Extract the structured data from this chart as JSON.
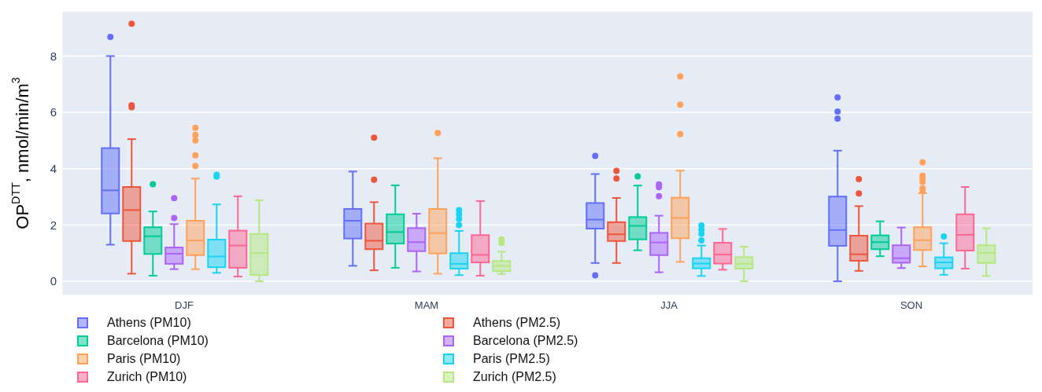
{
  "chart_data": {
    "type": "box",
    "ylabel": "OP$^{DTT}$, nmol/min/m$^{3}$",
    "categories": [
      "DJF",
      "MAM",
      "JJA",
      "SON"
    ],
    "ylim": [
      -0.5,
      9.6
    ],
    "yticks": [
      0,
      2,
      4,
      6,
      8
    ],
    "grid": "y",
    "legend": "bottom",
    "series": [
      {
        "name": "Athens (PM10)",
        "color": "#636efa",
        "boxes": [
          {
            "low": 1.3,
            "q1": 2.41,
            "median": 3.23,
            "q3": 4.73,
            "high": 8.0,
            "outliers": [
              8.68
            ]
          },
          {
            "low": 0.55,
            "q1": 1.52,
            "median": 2.15,
            "q3": 2.57,
            "high": 3.9
          },
          {
            "low": 0.65,
            "q1": 1.87,
            "median": 2.19,
            "q3": 2.78,
            "high": 3.81,
            "outliers": [
              4.45,
              0.21
            ]
          },
          {
            "low": 0.0,
            "q1": 1.26,
            "median": 1.82,
            "q3": 3.01,
            "high": 4.64,
            "outliers": [
              6.53,
              6.03,
              5.78
            ]
          }
        ]
      },
      {
        "name": "Athens (PM2.5)",
        "color": "#ef553b",
        "boxes": [
          {
            "low": 0.27,
            "q1": 1.43,
            "median": 2.53,
            "q3": 3.35,
            "high": 5.05,
            "outliers": [
              9.15,
              6.25,
              6.18
            ]
          },
          {
            "low": 0.39,
            "q1": 1.14,
            "median": 1.44,
            "q3": 2.05,
            "high": 2.81,
            "outliers": [
              5.1,
              3.61
            ]
          },
          {
            "low": 0.65,
            "q1": 1.43,
            "median": 1.67,
            "q3": 2.1,
            "high": 2.96,
            "outliers": [
              3.92,
              3.65
            ]
          },
          {
            "low": 0.37,
            "q1": 0.73,
            "median": 0.96,
            "q3": 1.62,
            "high": 2.67,
            "outliers": [
              3.63,
              3.12
            ]
          }
        ]
      },
      {
        "name": "Barcelona (PM10)",
        "color": "#00cc96",
        "boxes": [
          {
            "low": 0.2,
            "q1": 0.97,
            "median": 1.6,
            "q3": 1.92,
            "high": 2.48,
            "outliers": [
              3.45
            ]
          },
          {
            "low": 0.48,
            "q1": 1.34,
            "median": 1.75,
            "q3": 2.38,
            "high": 3.41
          },
          {
            "low": 1.1,
            "q1": 1.49,
            "median": 1.97,
            "q3": 2.28,
            "high": 3.4,
            "outliers": [
              3.73
            ]
          },
          {
            "low": 0.89,
            "q1": 1.14,
            "median": 1.39,
            "q3": 1.63,
            "high": 2.13
          }
        ]
      },
      {
        "name": "Barcelona (PM2.5)",
        "color": "#ab63fa",
        "boxes": [
          {
            "low": 0.43,
            "q1": 0.62,
            "median": 0.98,
            "q3": 1.2,
            "high": 2.03,
            "outliers": [
              2.95,
              2.25
            ]
          },
          {
            "low": 0.35,
            "q1": 1.07,
            "median": 1.39,
            "q3": 1.89,
            "high": 2.4
          },
          {
            "low": 0.32,
            "q1": 0.93,
            "median": 1.38,
            "q3": 1.72,
            "high": 2.33,
            "outliers": [
              3.44,
              3.34,
              3.02
            ]
          },
          {
            "low": 0.47,
            "q1": 0.66,
            "median": 0.82,
            "q3": 1.28,
            "high": 1.91
          }
        ]
      },
      {
        "name": "Paris (PM10)",
        "color": "#ffa15a",
        "boxes": [
          {
            "low": 0.43,
            "q1": 0.93,
            "median": 1.45,
            "q3": 2.15,
            "high": 3.65,
            "outliers": [
              5.45,
              5.2,
              5.0,
              4.47,
              4.1
            ]
          },
          {
            "low": 0.27,
            "q1": 0.99,
            "median": 1.71,
            "q3": 2.57,
            "high": 4.37,
            "outliers": [
              5.27
            ]
          },
          {
            "low": 0.69,
            "q1": 1.53,
            "median": 2.25,
            "q3": 2.97,
            "high": 3.93,
            "outliers": [
              7.28,
              6.27,
              5.23
            ]
          },
          {
            "low": 0.53,
            "q1": 1.11,
            "median": 1.46,
            "q3": 1.92,
            "high": 3.13,
            "outliers": [
              4.23,
              3.75,
              3.63,
              3.53,
              3.3,
              3.22
            ]
          }
        ]
      },
      {
        "name": "Paris (PM2.5)",
        "color": "#19d3f3",
        "boxes": [
          {
            "low": 0.3,
            "q1": 0.5,
            "median": 0.88,
            "q3": 1.48,
            "high": 2.73,
            "outliers": [
              3.78,
              3.72
            ]
          },
          {
            "low": 0.22,
            "q1": 0.45,
            "median": 0.62,
            "q3": 1.0,
            "high": 1.79,
            "outliers": [
              2.53,
              2.38,
              2.21,
              2.0
            ]
          },
          {
            "low": 0.19,
            "q1": 0.46,
            "median": 0.63,
            "q3": 0.82,
            "high": 1.27,
            "outliers": [
              1.98,
              1.83,
              1.69,
              1.45
            ]
          },
          {
            "low": 0.23,
            "q1": 0.46,
            "median": 0.67,
            "q3": 0.85,
            "high": 1.35,
            "outliers": [
              1.59
            ]
          }
        ]
      },
      {
        "name": "Zurich (PM10)",
        "color": "#ff6692",
        "boxes": [
          {
            "low": 0.17,
            "q1": 0.48,
            "median": 1.27,
            "q3": 1.8,
            "high": 3.02
          },
          {
            "low": 0.2,
            "q1": 0.67,
            "median": 0.94,
            "q3": 1.64,
            "high": 2.85
          },
          {
            "low": 0.41,
            "q1": 0.63,
            "median": 0.95,
            "q3": 1.37,
            "high": 1.86
          },
          {
            "low": 0.45,
            "q1": 1.09,
            "median": 1.65,
            "q3": 2.38,
            "high": 3.35
          }
        ]
      },
      {
        "name": "Zurich (PM2.5)",
        "color": "#b6e880",
        "boxes": [
          {
            "low": 0.0,
            "q1": 0.22,
            "median": 1.0,
            "q3": 1.68,
            "high": 2.88
          },
          {
            "low": 0.26,
            "q1": 0.36,
            "median": 0.55,
            "q3": 0.72,
            "high": 1.05,
            "outliers": [
              1.49,
              1.36
            ]
          },
          {
            "low": 0.0,
            "q1": 0.45,
            "median": 0.62,
            "q3": 0.86,
            "high": 1.23
          },
          {
            "low": 0.19,
            "q1": 0.65,
            "median": 1.01,
            "q3": 1.28,
            "high": 1.88
          }
        ]
      }
    ]
  }
}
